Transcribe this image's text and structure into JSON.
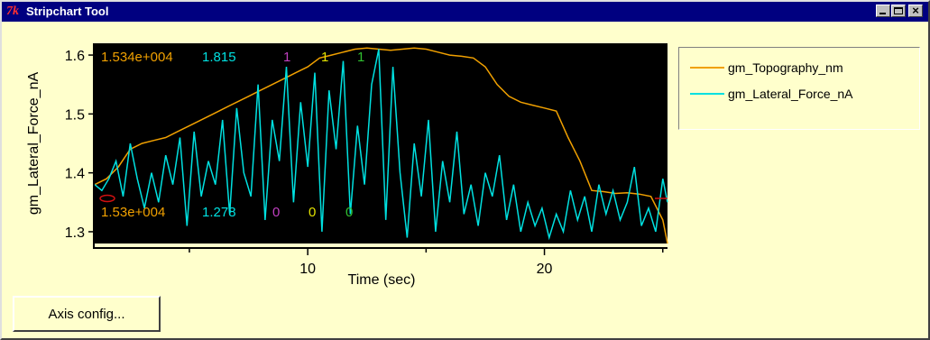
{
  "window": {
    "title": "Stripchart Tool",
    "logo_text": "7k",
    "close_glyph": "×"
  },
  "colors": {
    "topography": "#f0a000",
    "lateral_force": "#00e0e0",
    "magenta": "#c040c0",
    "yellow": "#e0e000",
    "green": "#30c030",
    "plot_bg": "#000000",
    "panel_bg": "#ffffcc",
    "marker_red": "#d01010"
  },
  "overlay": {
    "top": {
      "topo": "1.534e+004",
      "force": "1.815",
      "a": "1",
      "b": "1",
      "c": "1"
    },
    "bottom": {
      "topo": "1.53e+004",
      "force": "1.278",
      "a": "0",
      "b": "0",
      "c": "0"
    }
  },
  "legend": {
    "items": [
      {
        "label": "gm_Topography_nm",
        "color": "#f0a000",
        "icon": "orange-line"
      },
      {
        "label": "gm_Lateral_Force_nA",
        "color": "#00e0e0",
        "icon": "cyan-line"
      }
    ]
  },
  "buttons": {
    "axis_config": "Axis config..."
  },
  "chart_data": {
    "type": "line",
    "xlabel": "Time (sec)",
    "ylabel": "gm_Lateral_Force_nA",
    "xlim": [
      1.0,
      25.2
    ],
    "ylim": [
      1.28,
      1.62
    ],
    "x_ticks": [
      5,
      10,
      15,
      20,
      25
    ],
    "x_tick_labels": [
      10,
      20
    ],
    "y_ticks": [
      1.3,
      1.4,
      1.5,
      1.6
    ],
    "y_tick_labels": [
      "1.3",
      "1.4",
      "1.5",
      "1.6"
    ],
    "grid": false,
    "legend_position": "right",
    "series": [
      {
        "name": "gm_Topography_nm",
        "color": "#f0a000",
        "x": [
          1.0,
          1.5,
          2.0,
          2.5,
          3.0,
          3.5,
          4.0,
          4.5,
          5.0,
          5.5,
          6.0,
          6.5,
          7.0,
          7.5,
          8.0,
          8.5,
          9.0,
          9.5,
          10.0,
          10.5,
          11.0,
          11.5,
          12.0,
          12.5,
          13.0,
          13.5,
          14.0,
          14.5,
          15.0,
          15.5,
          16.0,
          16.5,
          17.0,
          17.5,
          18.0,
          18.5,
          19.0,
          19.5,
          20.0,
          20.5,
          21.0,
          21.5,
          22.0,
          22.5,
          23.0,
          23.5,
          24.0,
          24.5,
          25.0,
          25.2
        ],
        "y": [
          1.38,
          1.39,
          1.41,
          1.44,
          1.45,
          1.455,
          1.46,
          1.47,
          1.48,
          1.49,
          1.5,
          1.51,
          1.52,
          1.53,
          1.54,
          1.55,
          1.56,
          1.57,
          1.58,
          1.595,
          1.6,
          1.605,
          1.61,
          1.612,
          1.61,
          1.608,
          1.61,
          1.612,
          1.61,
          1.605,
          1.6,
          1.598,
          1.595,
          1.58,
          1.55,
          1.53,
          1.52,
          1.515,
          1.51,
          1.505,
          1.46,
          1.42,
          1.37,
          1.368,
          1.365,
          1.366,
          1.364,
          1.36,
          1.32,
          1.28
        ]
      },
      {
        "name": "gm_Lateral_Force_nA",
        "color": "#00e0e0",
        "x": [
          1.0,
          1.3,
          1.6,
          1.9,
          2.2,
          2.5,
          2.8,
          3.1,
          3.4,
          3.7,
          4.0,
          4.3,
          4.6,
          4.9,
          5.2,
          5.5,
          5.8,
          6.1,
          6.4,
          6.7,
          7.0,
          7.3,
          7.6,
          7.9,
          8.2,
          8.5,
          8.8,
          9.1,
          9.4,
          9.7,
          10.0,
          10.3,
          10.6,
          10.9,
          11.2,
          11.5,
          11.8,
          12.1,
          12.4,
          12.7,
          13.0,
          13.3,
          13.6,
          13.9,
          14.2,
          14.5,
          14.8,
          15.1,
          15.4,
          15.7,
          16.0,
          16.3,
          16.6,
          16.9,
          17.2,
          17.5,
          17.8,
          18.1,
          18.4,
          18.7,
          19.0,
          19.3,
          19.6,
          19.9,
          20.2,
          20.5,
          20.8,
          21.1,
          21.4,
          21.7,
          22.0,
          22.3,
          22.6,
          22.9,
          23.2,
          23.5,
          23.8,
          24.1,
          24.4,
          24.7,
          25.0,
          25.2
        ],
        "y": [
          1.38,
          1.37,
          1.39,
          1.42,
          1.36,
          1.45,
          1.39,
          1.34,
          1.4,
          1.35,
          1.43,
          1.38,
          1.46,
          1.31,
          1.47,
          1.36,
          1.42,
          1.38,
          1.49,
          1.33,
          1.51,
          1.4,
          1.36,
          1.55,
          1.32,
          1.49,
          1.42,
          1.58,
          1.35,
          1.52,
          1.41,
          1.57,
          1.3,
          1.54,
          1.44,
          1.59,
          1.33,
          1.48,
          1.38,
          1.55,
          1.61,
          1.32,
          1.58,
          1.4,
          1.29,
          1.45,
          1.36,
          1.49,
          1.3,
          1.42,
          1.35,
          1.47,
          1.33,
          1.38,
          1.31,
          1.4,
          1.36,
          1.43,
          1.32,
          1.38,
          1.3,
          1.35,
          1.31,
          1.34,
          1.29,
          1.33,
          1.3,
          1.37,
          1.32,
          1.36,
          1.3,
          1.38,
          1.33,
          1.37,
          1.32,
          1.35,
          1.41,
          1.31,
          1.34,
          1.3,
          1.39,
          1.35
        ]
      }
    ]
  }
}
